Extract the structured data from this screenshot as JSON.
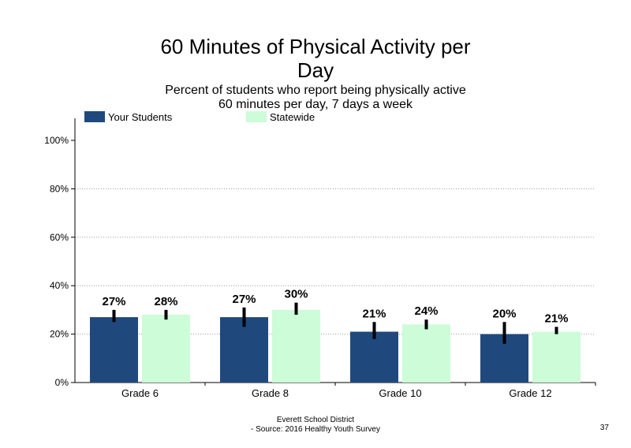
{
  "title_line1": "60 Minutes of Physical Activity per",
  "title_line2": "Day",
  "subtitle_line1": "Percent of students  who report being physically active",
  "subtitle_line2": "60 minutes  per day, 7 days a week",
  "footer_line1": "Everett School District",
  "footer_line2": "- Source: 2016 Healthy  Youth Survey",
  "page_number": "37",
  "colors": {
    "your_students": "#1f497d",
    "statewide": "#ccfcd8"
  },
  "chart_data": {
    "type": "bar",
    "categories": [
      "Grade 6",
      "Grade 8",
      "Grade 10",
      "Grade 12"
    ],
    "series": [
      {
        "name": "Your Students",
        "values": [
          27,
          27,
          21,
          20
        ],
        "labels": [
          "27%",
          "27%",
          "21%",
          "20%"
        ],
        "error_low": [
          25,
          23,
          18,
          16
        ],
        "error_high": [
          30,
          31,
          25,
          25
        ]
      },
      {
        "name": "Statewide",
        "values": [
          28,
          30,
          24,
          21
        ],
        "labels": [
          "28%",
          "30%",
          "24%",
          "21%"
        ],
        "error_low": [
          26,
          28,
          22,
          20
        ],
        "error_high": [
          30,
          33,
          26,
          23
        ]
      }
    ],
    "yticks": [
      0,
      20,
      40,
      60,
      80,
      100
    ],
    "ytick_labels": [
      "0%",
      "20%",
      "40%",
      "60%",
      "80%",
      "100%"
    ],
    "ylim": [
      0,
      100
    ],
    "grid": true,
    "legend_position": "top-left"
  }
}
